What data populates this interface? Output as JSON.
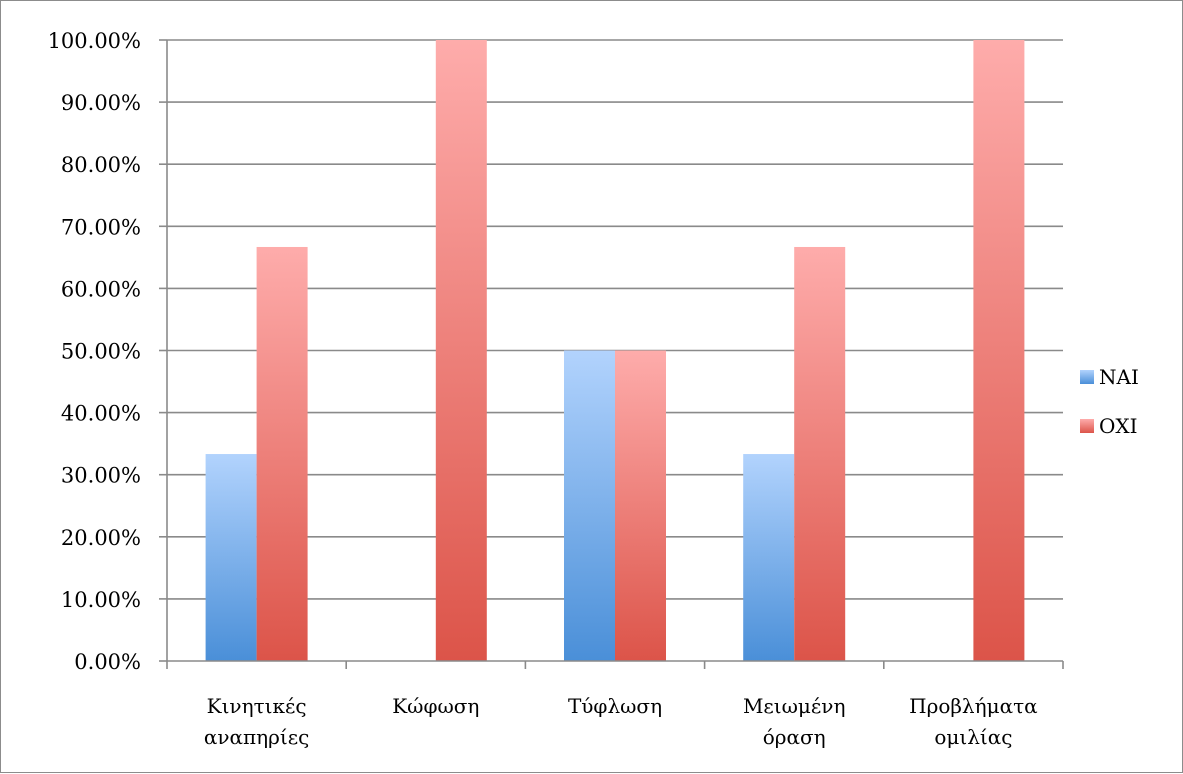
{
  "chart_data": {
    "type": "bar",
    "title": "",
    "xlabel": "",
    "ylabel": "",
    "categories": [
      [
        "Κινητικές",
        "αναπηρίες"
      ],
      [
        "Κώφωση"
      ],
      [
        "Τύφλωση"
      ],
      [
        "Μειωμένη",
        "όραση"
      ],
      [
        "Προβλήματα",
        "ομιλίας"
      ]
    ],
    "series": [
      {
        "name": "ΝΑΙ",
        "values": [
          33.33,
          0,
          50,
          33.33,
          0
        ],
        "color_top": "#b2d3fd",
        "color_bottom": "#4a8fd8"
      },
      {
        "name": "ΟΧΙ",
        "values": [
          66.67,
          100,
          50,
          66.67,
          100
        ],
        "color_top": "#feacab",
        "color_bottom": "#dc5449"
      }
    ],
    "ylim": [
      0,
      100
    ],
    "y_ticks": [
      "0.00%",
      "10.00%",
      "20.00%",
      "30.00%",
      "40.00%",
      "50.00%",
      "60.00%",
      "70.00%",
      "80.00%",
      "90.00%",
      "100.00%"
    ],
    "grid": true,
    "legend_position": "right"
  }
}
